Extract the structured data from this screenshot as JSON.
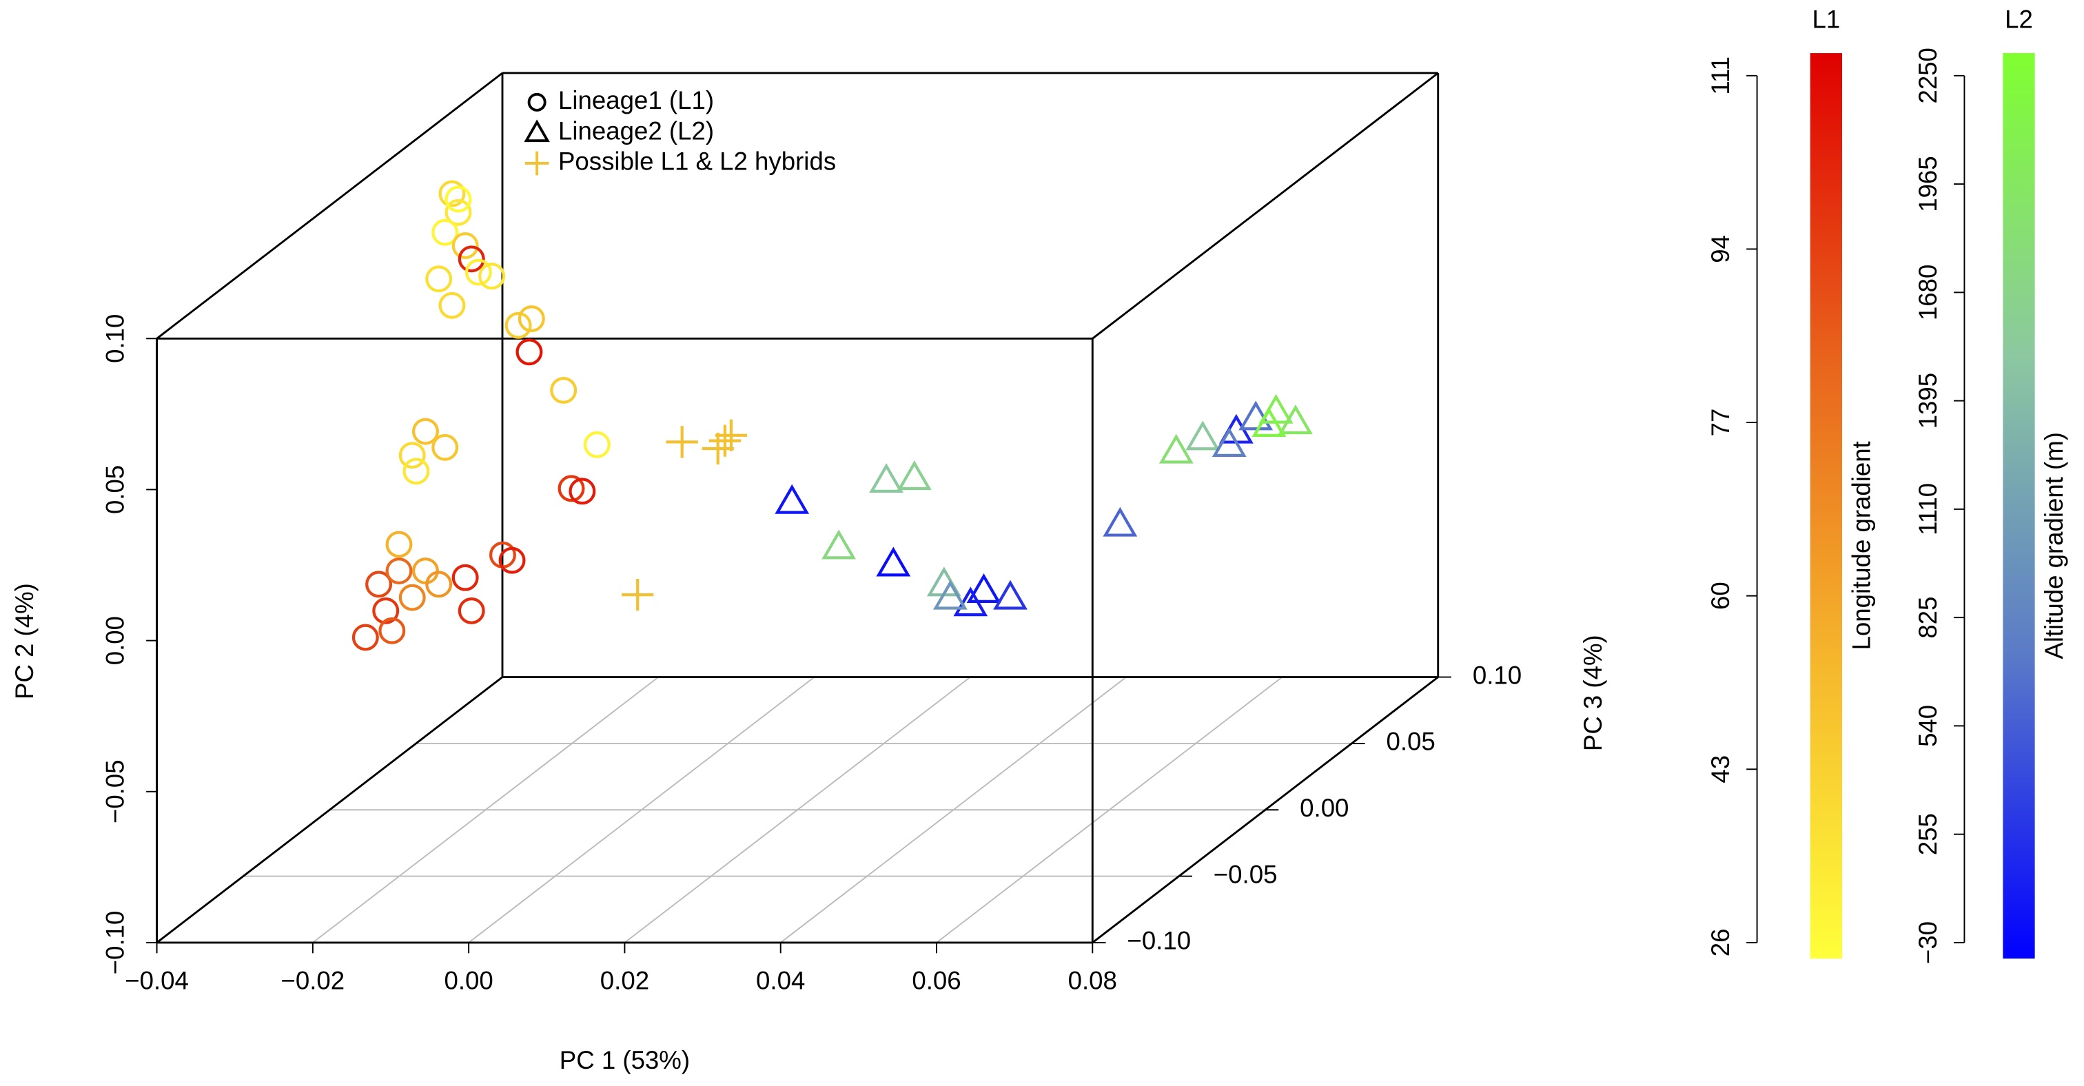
{
  "chart_data": {
    "type": "scatter3d",
    "xlabel": "PC 1 (53%)",
    "ylabel": "PC 2 (4%)",
    "zlabel": "PC 3 (4%)",
    "xlim": [
      -0.04,
      0.08
    ],
    "ylim": [
      -0.1,
      0.1
    ],
    "zlim": [
      -0.1,
      0.1
    ],
    "xticks": [
      {
        "value": -0.04,
        "label": "−0.04"
      },
      {
        "value": -0.02,
        "label": "−0.02"
      },
      {
        "value": 0,
        "label": "0.00"
      },
      {
        "value": 0.02,
        "label": "0.02"
      },
      {
        "value": 0.04,
        "label": "0.04"
      },
      {
        "value": 0.06,
        "label": "0.06"
      },
      {
        "value": 0.08,
        "label": "0.08"
      }
    ],
    "yticks": [
      {
        "value": -0.1,
        "label": "−0.10"
      },
      {
        "value": -0.05,
        "label": "−0.05"
      },
      {
        "value": 0,
        "label": "0.00"
      },
      {
        "value": 0.05,
        "label": "0.05"
      },
      {
        "value": 0.1,
        "label": "0.10"
      }
    ],
    "zticks": [
      {
        "value": -0.1,
        "label": "−0.10"
      },
      {
        "value": -0.05,
        "label": "−0.05"
      },
      {
        "value": 0,
        "label": "0.00"
      },
      {
        "value": 0.05,
        "label": "0.05"
      },
      {
        "value": 0.1,
        "label": "0.10"
      }
    ],
    "grid": true,
    "colorbars": [
      {
        "title": "L1",
        "label": "Longitude gradient",
        "lim": [
          26,
          111
        ],
        "ticks": [
          26,
          43,
          60,
          77,
          94,
          111
        ],
        "colormap": [
          "#ffff3a",
          "#f5b52c",
          "#e8621c",
          "#e00000"
        ]
      },
      {
        "title": "L2",
        "label": "Altitude gradient (m)",
        "lim": [
          -30,
          2250
        ],
        "ticks": [
          {
            "value": -30,
            "label": "−30"
          },
          255,
          540,
          825,
          1110,
          1395,
          1680,
          1965,
          2250
        ],
        "colormap": [
          "#0000ff",
          "#5a7ac8",
          "#8cc8a0",
          "#80ff30"
        ]
      }
    ],
    "series": [
      {
        "name": "Lineage1 (L1)",
        "marker": "circle",
        "colorbar": 0,
        "points": [
          [
            -0.0243,
            0.104,
            0,
            40
          ],
          [
            -0.0235,
            0.0978,
            0,
            35
          ],
          [
            -0.0252,
            0.0912,
            0,
            30
          ],
          [
            -0.0226,
            0.0868,
            0,
            45
          ],
          [
            -0.0218,
            0.0824,
            0,
            100
          ],
          [
            -0.026,
            0.0758,
            0,
            38
          ],
          [
            -0.0209,
            0.078,
            0,
            32
          ],
          [
            -0.0243,
            0.067,
            0,
            40
          ],
          [
            -0.0192,
            0.0767,
            0,
            36
          ],
          [
            -0.0235,
            0.1022,
            0,
            28
          ],
          [
            -0.0158,
            0.0604,
            0,
            45
          ],
          [
            -0.0141,
            0.0626,
            0,
            48
          ],
          [
            -0.0144,
            0.0516,
            0,
            105
          ],
          [
            -0.01,
            0.0389,
            0,
            45
          ],
          [
            -0.0057,
            0.0209,
            0,
            30
          ],
          [
            -0.0277,
            0.0253,
            0,
            50
          ],
          [
            -0.0252,
            0.02,
            0,
            48
          ],
          [
            -0.0294,
            0.0174,
            0,
            40
          ],
          [
            -0.0289,
            0.0121,
            0,
            35
          ],
          [
            -0.0337,
            -0.0253,
            0,
            90
          ],
          [
            -0.0311,
            -0.0209,
            0,
            80
          ],
          [
            -0.0328,
            -0.0341,
            0,
            95
          ],
          [
            -0.0294,
            -0.0297,
            0,
            70
          ],
          [
            -0.0277,
            -0.0209,
            0,
            60
          ],
          [
            -0.032,
            -0.0407,
            0,
            85
          ],
          [
            -0.026,
            -0.0253,
            0,
            65
          ],
          [
            -0.0226,
            -0.0231,
            0,
            100
          ],
          [
            -0.0218,
            -0.0341,
            0,
            98
          ],
          [
            -0.0178,
            -0.0156,
            0,
            90
          ],
          [
            -0.0166,
            -0.0174,
            0,
            102
          ],
          [
            -0.009,
            0.0064,
            0,
            95
          ],
          [
            -0.0076,
            0.0055,
            0,
            103
          ],
          [
            -0.0311,
            -0.0121,
            0,
            55
          ],
          [
            -0.0354,
            -0.0429,
            0,
            92
          ]
        ]
      },
      {
        "name": "Lineage2 (L2)",
        "marker": "triangle",
        "colorbar": 1,
        "points": [
          [
            0.0193,
            0.002,
            0,
            100
          ],
          [
            0.0253,
            -0.013,
            0,
            1700
          ],
          [
            0.0323,
            -0.0187,
            0,
            50
          ],
          [
            0.0314,
            0.009,
            0,
            1500
          ],
          [
            0.035,
            0.0099,
            0,
            1600
          ],
          [
            0.0388,
            -0.0253,
            0,
            1400
          ],
          [
            0.0439,
            -0.0275,
            0,
            100
          ],
          [
            0.0473,
            -0.0297,
            0,
            300
          ],
          [
            0.0422,
            -0.0319,
            0,
            150
          ],
          [
            0.0396,
            -0.0297,
            0,
            1000
          ],
          [
            0.0503,
            -0.0275,
            0.05,
            600
          ],
          [
            0.0575,
            -0.0033,
            0.05,
            1800
          ],
          [
            0.0609,
            0.0011,
            0.05,
            1500
          ],
          [
            0.0652,
            0.0033,
            0.05,
            200
          ],
          [
            0.0677,
            0.0077,
            0.05,
            700
          ],
          [
            0.0703,
            0.0099,
            0.05,
            2000
          ],
          [
            0.0728,
            0.0064,
            0.05,
            1900
          ],
          [
            0.0643,
            -0.0011,
            0.05,
            800
          ],
          [
            0.0694,
            0.0055,
            0.05,
            2100
          ]
        ]
      },
      {
        "name": "Possible L1 & L2 hybrids",
        "marker": "plus",
        "color": "#f2c132",
        "points": [
          [
            0.0052,
            0.0218,
            0
          ],
          [
            -0.0005,
            -0.0288,
            0
          ],
          [
            0.0098,
            0.0196,
            0
          ],
          [
            0.0115,
            0.024,
            0
          ],
          [
            0.0107,
            0.0222,
            0
          ]
        ]
      }
    ]
  }
}
